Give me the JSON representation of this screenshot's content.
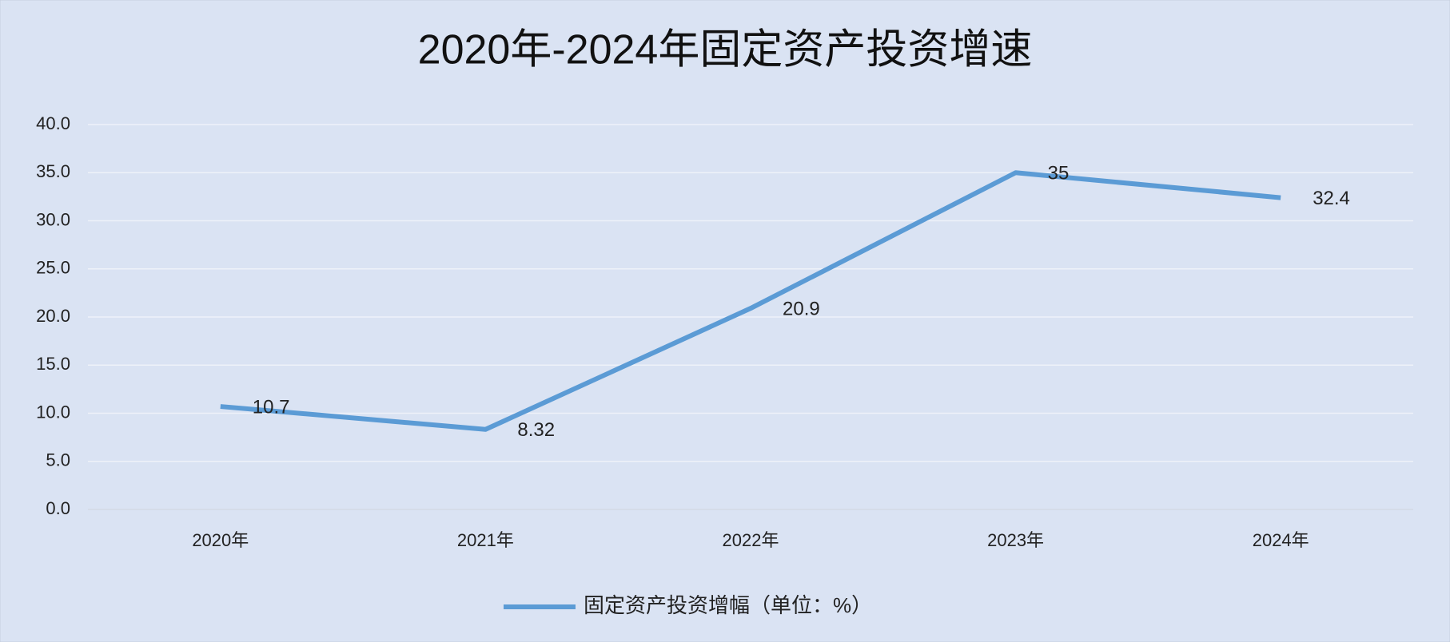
{
  "chart_data": {
    "type": "line",
    "title": "2020年-2024年固定资产投资增速",
    "categories": [
      "2020年",
      "2021年",
      "2022年",
      "2023年",
      "2024年"
    ],
    "series": [
      {
        "name": "固定资产投资增幅（单位：%）",
        "color": "#5b9bd5",
        "values": [
          10.7,
          8.32,
          20.9,
          35,
          32.4
        ]
      }
    ],
    "ylim": [
      0,
      40
    ],
    "yticks": [
      {
        "value": 0,
        "label": "0.0"
      },
      {
        "value": 5,
        "label": "5.0"
      },
      {
        "value": 10,
        "label": "10.0"
      },
      {
        "value": 15,
        "label": "15.0"
      },
      {
        "value": 20,
        "label": "20.0"
      },
      {
        "value": 25,
        "label": "25.0"
      },
      {
        "value": 30,
        "label": "30.0"
      },
      {
        "value": 35,
        "label": "35.0"
      },
      {
        "value": 40,
        "label": "40.0"
      }
    ],
    "grid": true,
    "legend": "bottom"
  }
}
